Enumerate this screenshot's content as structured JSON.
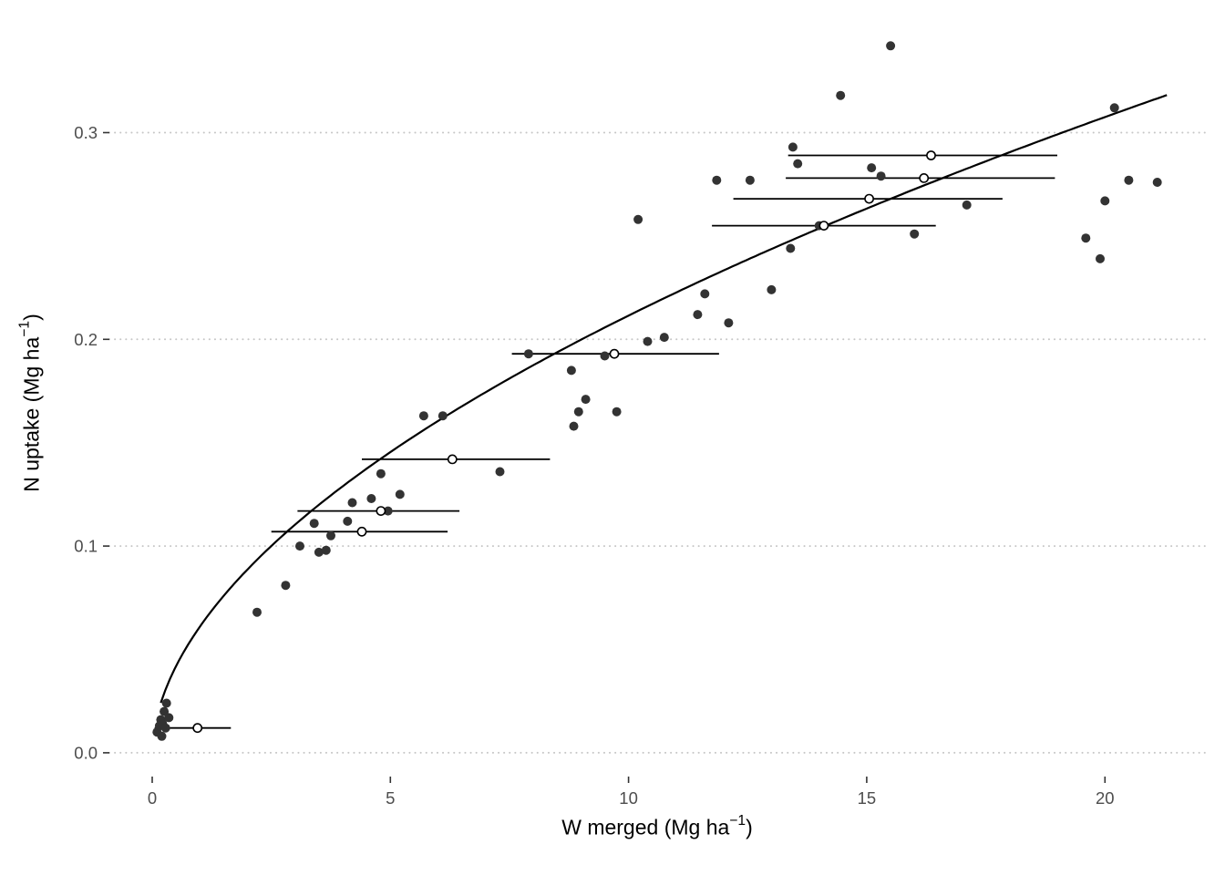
{
  "figure": {
    "background": "#ffffff"
  },
  "chart_data": {
    "type": "scatter",
    "title": "",
    "xlabel": "W merged (Mg ha−1)",
    "ylabel": "N uptake (Mg ha−1)",
    "xlabel_prefix": "W merged (Mg ha",
    "xlabel_sup": "−1",
    "xlabel_suffix": ")",
    "ylabel_prefix": "N uptake (Mg ha",
    "ylabel_sup": "−1",
    "ylabel_suffix": ")",
    "xlim": [
      -0.9,
      22.1
    ],
    "ylim": [
      -0.0115,
      0.358
    ],
    "x_ticks": [
      "0",
      "5",
      "10",
      "15",
      "20"
    ],
    "x_tick_values": [
      0,
      5,
      10,
      15,
      20
    ],
    "y_ticks": [
      "0.0",
      "0.1",
      "0.2",
      "0.3"
    ],
    "y_tick_values": [
      0.0,
      0.1,
      0.2,
      0.3
    ],
    "grid": {
      "horizontal": true,
      "vertical": false,
      "style": "dotted",
      "color": "#c6c6c6"
    },
    "legend": "none",
    "point_color": "#333333",
    "open_point_fill": "#ffffff",
    "open_point_stroke": "#000000",
    "line_color": "#000000",
    "tick_label_color": "#4d4d4d",
    "tick_mark_color": "#333333",
    "series": [
      {
        "name": "observations",
        "marker": "filled-circle"
      },
      {
        "name": "merged-means-with-x-range-bars",
        "marker": "open-circle"
      },
      {
        "name": "fitted-power-curve",
        "marker": "line"
      }
    ],
    "points": [
      [
        0.1,
        0.01
      ],
      [
        0.15,
        0.013
      ],
      [
        0.18,
        0.016
      ],
      [
        0.2,
        0.008
      ],
      [
        0.22,
        0.014
      ],
      [
        0.25,
        0.02
      ],
      [
        0.28,
        0.012
      ],
      [
        0.3,
        0.024
      ],
      [
        0.35,
        0.017
      ],
      [
        2.2,
        0.068
      ],
      [
        2.8,
        0.081
      ],
      [
        3.1,
        0.1
      ],
      [
        3.4,
        0.111
      ],
      [
        3.5,
        0.097
      ],
      [
        3.65,
        0.098
      ],
      [
        3.75,
        0.105
      ],
      [
        4.1,
        0.112
      ],
      [
        4.2,
        0.121
      ],
      [
        4.6,
        0.123
      ],
      [
        4.8,
        0.135
      ],
      [
        4.95,
        0.117
      ],
      [
        5.2,
        0.125
      ],
      [
        5.7,
        0.163
      ],
      [
        6.1,
        0.163
      ],
      [
        7.3,
        0.136
      ],
      [
        7.9,
        0.193
      ],
      [
        8.8,
        0.185
      ],
      [
        8.85,
        0.158
      ],
      [
        8.95,
        0.165
      ],
      [
        9.1,
        0.171
      ],
      [
        9.5,
        0.192
      ],
      [
        9.75,
        0.165
      ],
      [
        10.2,
        0.258
      ],
      [
        10.4,
        0.199
      ],
      [
        10.75,
        0.201
      ],
      [
        11.45,
        0.212
      ],
      [
        11.6,
        0.222
      ],
      [
        11.85,
        0.277
      ],
      [
        12.1,
        0.208
      ],
      [
        12.55,
        0.277
      ],
      [
        13.0,
        0.224
      ],
      [
        13.4,
        0.244
      ],
      [
        13.45,
        0.293
      ],
      [
        13.55,
        0.285
      ],
      [
        14.0,
        0.255
      ],
      [
        14.45,
        0.318
      ],
      [
        15.1,
        0.283
      ],
      [
        15.3,
        0.279
      ],
      [
        15.5,
        0.342
      ],
      [
        16.0,
        0.251
      ],
      [
        17.1,
        0.265
      ],
      [
        19.6,
        0.249
      ],
      [
        19.9,
        0.239
      ],
      [
        20.0,
        0.267
      ],
      [
        20.2,
        0.312
      ],
      [
        20.5,
        0.277
      ],
      [
        21.1,
        0.276
      ]
    ],
    "merged_points": [
      {
        "x": 0.95,
        "y": 0.012,
        "xmin": 0.05,
        "xmax": 1.65
      },
      {
        "x": 4.4,
        "y": 0.107,
        "xmin": 2.5,
        "xmax": 6.2
      },
      {
        "x": 4.8,
        "y": 0.117,
        "xmin": 3.05,
        "xmax": 6.45
      },
      {
        "x": 6.3,
        "y": 0.142,
        "xmin": 4.4,
        "xmax": 8.35
      },
      {
        "x": 9.7,
        "y": 0.193,
        "xmin": 7.55,
        "xmax": 11.9
      },
      {
        "x": 14.1,
        "y": 0.255,
        "xmin": 11.75,
        "xmax": 16.45
      },
      {
        "x": 15.05,
        "y": 0.268,
        "xmin": 12.2,
        "xmax": 17.85
      },
      {
        "x": 16.2,
        "y": 0.278,
        "xmin": 13.3,
        "xmax": 18.95
      },
      {
        "x": 16.35,
        "y": 0.289,
        "xmin": 13.35,
        "xmax": 19.0
      }
    ],
    "fit_curve": {
      "model": "power",
      "formula": "y = a * x^b",
      "a": 0.061,
      "b": 0.54,
      "x_start": 0.18,
      "x_end": 21.3
    }
  }
}
